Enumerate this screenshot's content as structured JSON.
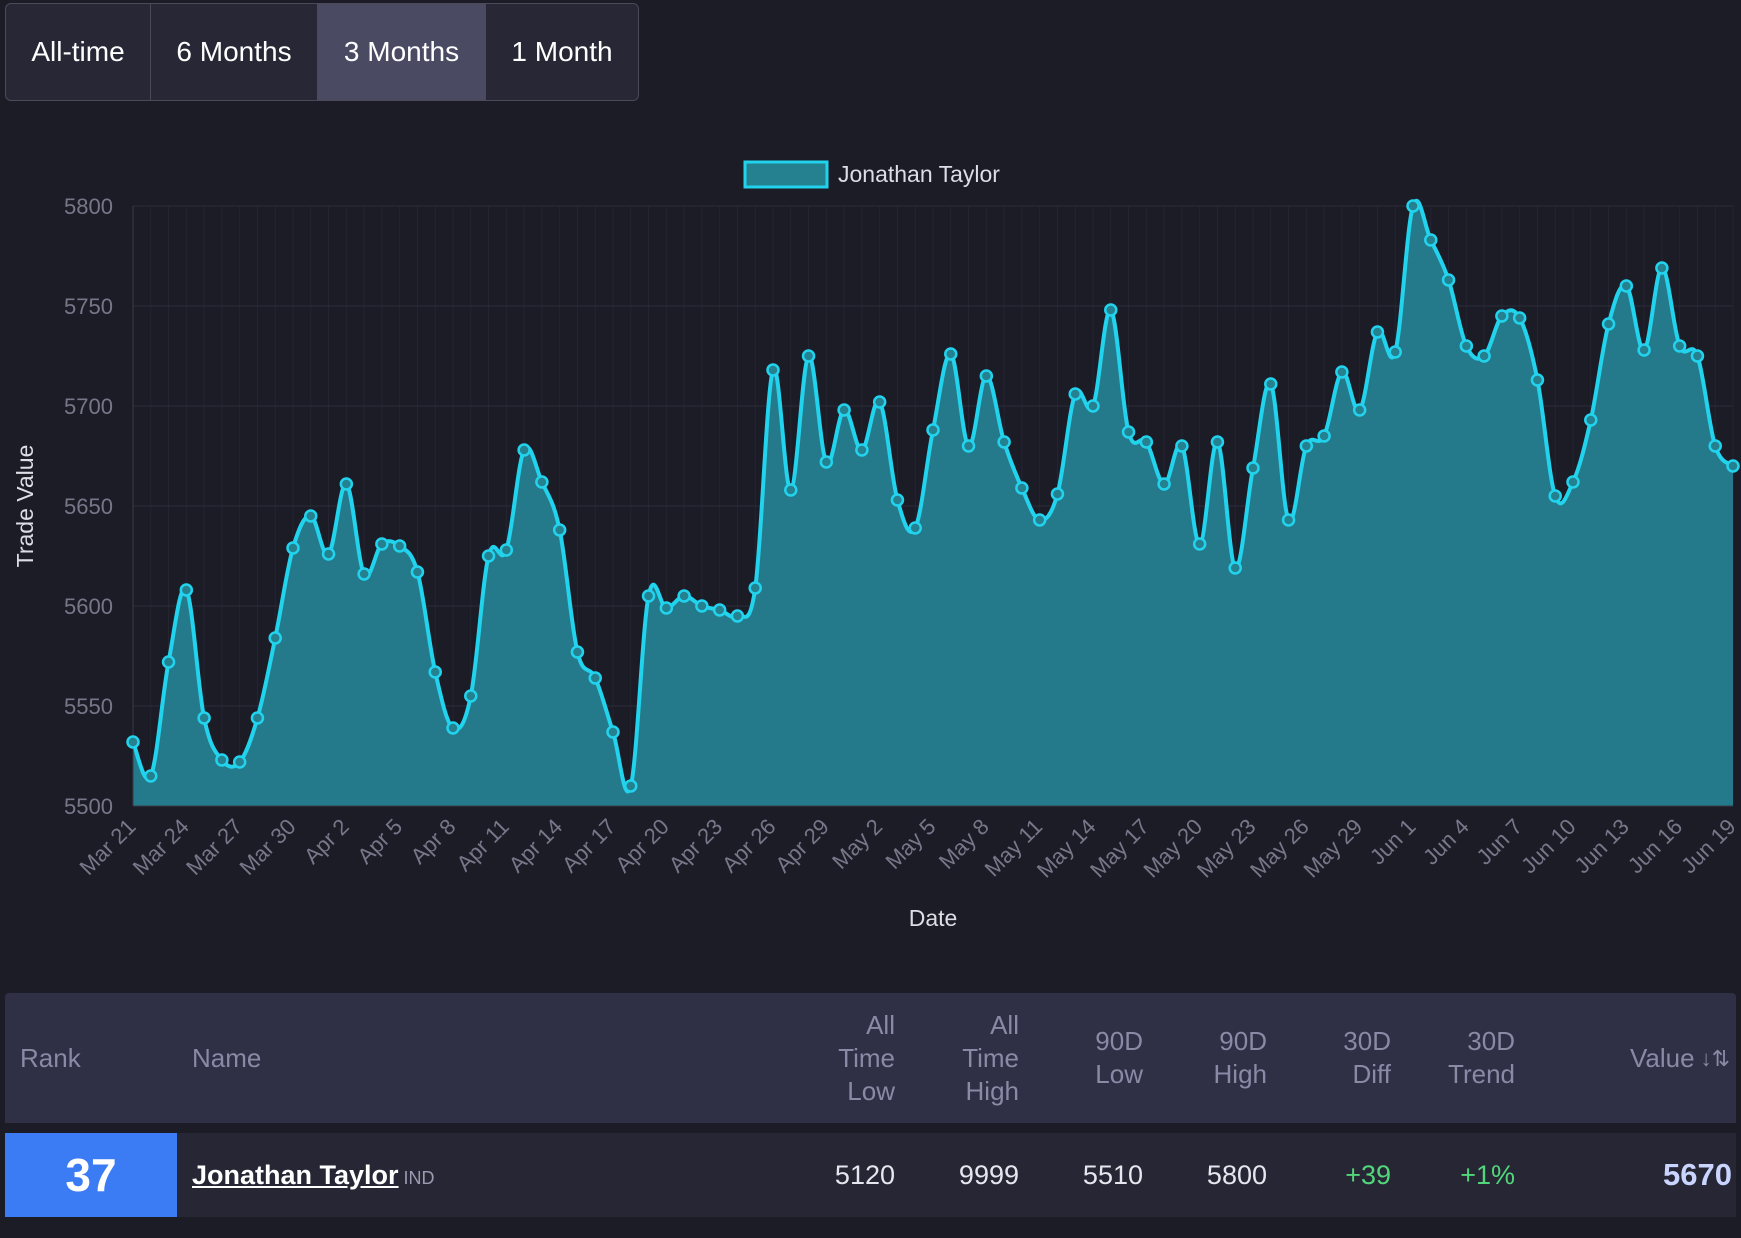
{
  "range_tabs": [
    {
      "label": "All-time",
      "active": false
    },
    {
      "label": "6 Months",
      "active": false
    },
    {
      "label": "3 Months",
      "active": true
    },
    {
      "label": "1 Month",
      "active": false
    }
  ],
  "chart_data": {
    "type": "area",
    "xlabel": "Date",
    "ylabel": "Trade Value",
    "ylim": [
      5500,
      5800
    ],
    "yticks": [
      5500,
      5550,
      5600,
      5650,
      5700,
      5750,
      5800
    ],
    "xtick_labels": [
      "Mar 21",
      "Mar 24",
      "Mar 27",
      "Mar 30",
      "Apr 2",
      "Apr 5",
      "Apr 8",
      "Apr 11",
      "Apr 14",
      "Apr 17",
      "Apr 20",
      "Apr 23",
      "Apr 26",
      "Apr 29",
      "May 2",
      "May 5",
      "May 8",
      "May 11",
      "May 14",
      "May 17",
      "May 20",
      "May 23",
      "May 26",
      "May 29",
      "Jun 1",
      "Jun 4",
      "Jun 7",
      "Jun 10",
      "Jun 13",
      "Jun 16",
      "Jun 19"
    ],
    "grid": true,
    "legend_position": "top-center",
    "colors": {
      "line": "#22d3ee",
      "fill": "#25808f",
      "background": "#1c1c27",
      "grid": "#2c2c3a",
      "tick": "#77778a",
      "label": "#dddde6"
    },
    "series": [
      {
        "name": "Jonathan Taylor",
        "values": [
          5532,
          5515,
          5572,
          5608,
          5544,
          5523,
          5522,
          5544,
          5584,
          5629,
          5645,
          5626,
          5661,
          5616,
          5631,
          5630,
          5617,
          5567,
          5539,
          5555,
          5625,
          5628,
          5678,
          5662,
          5638,
          5577,
          5564,
          5537,
          5510,
          5605,
          5599,
          5605,
          5600,
          5598,
          5595,
          5609,
          5718,
          5658,
          5725,
          5672,
          5698,
          5678,
          5702,
          5653,
          5639,
          5688,
          5726,
          5680,
          5715,
          5682,
          5659,
          5643,
          5656,
          5706,
          5700,
          5748,
          5687,
          5682,
          5661,
          5680,
          5631,
          5682,
          5619,
          5669,
          5711,
          5643,
          5680,
          5685,
          5717,
          5698,
          5737,
          5727,
          5800,
          5783,
          5763,
          5730,
          5725,
          5745,
          5744,
          5713,
          5655,
          5662,
          5693,
          5741,
          5760,
          5728,
          5769,
          5730,
          5725,
          5680,
          5670
        ]
      }
    ]
  },
  "table": {
    "headers": {
      "rank": "Rank",
      "name": "Name",
      "atl": [
        "All",
        "Time",
        "Low"
      ],
      "ath": [
        "All",
        "Time",
        "High"
      ],
      "low90": [
        "90D",
        "Low"
      ],
      "high90": [
        "90D",
        "High"
      ],
      "diff30": [
        "30D",
        "Diff"
      ],
      "trend30": [
        "30D",
        "Trend"
      ],
      "value": "Value"
    },
    "sort_icon": "sort-descending-icon",
    "rows": [
      {
        "rank": "37",
        "name": "Jonathan Taylor",
        "team": "IND",
        "atl": "5120",
        "ath": "9999",
        "low90": "5510",
        "high90": "5800",
        "diff30": "+39",
        "trend30": "+1%",
        "value": "5670"
      }
    ]
  }
}
